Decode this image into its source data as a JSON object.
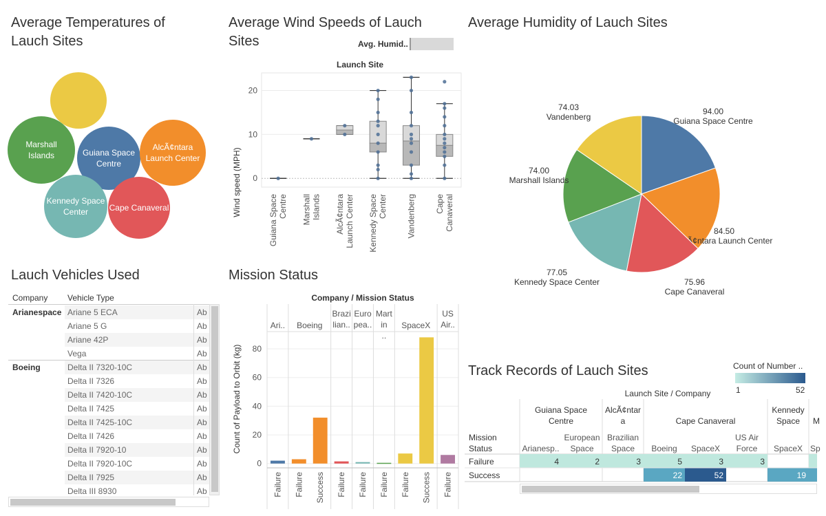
{
  "dashboard": {
    "temps_title": "Average Temperatures of Lauch Sites",
    "wind_title": "Average Wind Speeds of Lauch Sites",
    "humidity_title": "Average Humidity of Lauch Sites",
    "vehicles_title": "Lauch Vehicles Used",
    "mission_title": "Mission Status",
    "track_title": "Track Records of Lauch Sites"
  },
  "bubbles": [
    {
      "label": "",
      "color": "#EBC944"
    },
    {
      "label": "Marshall Islands",
      "color": "#59A14F"
    },
    {
      "label": "Guiana Space Centre",
      "color": "#4E79A7"
    },
    {
      "label": "AlcÃ¢ntara Launch Center",
      "color": "#F28E2B"
    },
    {
      "label": "Kennedy Space Center",
      "color": "#76B7B2"
    },
    {
      "label": "Cape Canaveral",
      "color": "#E15759"
    }
  ],
  "wind_filter": {
    "label": "Avg. Humid.."
  },
  "wind_chart": {
    "type": "boxplot",
    "header": "Launch Site",
    "ylabel": "Wind speed (MPH)",
    "y_ticks": [
      0,
      10,
      20
    ],
    "ylim": [
      -2,
      24
    ],
    "categories": [
      "Guiana Space Centre",
      "Marshall Islands",
      "AlcÃ¢ntara Launch Center",
      "Kennedy Space Center",
      "Vandenberg",
      "Cape Canaveral"
    ],
    "boxes": [
      {
        "min": 0,
        "q1": 0,
        "median": 0,
        "q3": 0,
        "max": 0,
        "points": [
          0
        ]
      },
      {
        "min": 9,
        "q1": 9,
        "median": 9,
        "q3": 9,
        "max": 9,
        "points": [
          9
        ]
      },
      {
        "min": 10,
        "q1": 10,
        "median": 11,
        "q3": 12,
        "max": 12,
        "points": [
          10,
          12
        ]
      },
      {
        "min": 0,
        "q1": 6,
        "median": 8,
        "q3": 13,
        "max": 20,
        "points": [
          0,
          2,
          3,
          6,
          8,
          10,
          12,
          13,
          15,
          18,
          20
        ]
      },
      {
        "min": 0,
        "q1": 3,
        "median": 8.5,
        "q3": 12,
        "max": 23,
        "points": [
          0,
          1,
          3,
          6,
          8,
          9,
          10,
          12,
          15,
          20,
          23
        ]
      },
      {
        "min": 0,
        "q1": 5,
        "median": 7.5,
        "q3": 10,
        "max": 17,
        "points": [
          0,
          3,
          5,
          6,
          7,
          8,
          9,
          10,
          12,
          14,
          16,
          17,
          22
        ]
      }
    ]
  },
  "humidity_chart": {
    "type": "pie",
    "slices": [
      {
        "name": "Guiana Space Centre",
        "value": 94.0,
        "label": "94.00",
        "color": "#4E79A7"
      },
      {
        "name": "AlcÃ¢ntara Launch Center",
        "value": 84.5,
        "label": "84.50",
        "color": "#F28E2B"
      },
      {
        "name": "Cape Canaveral",
        "value": 75.96,
        "label": "75.96",
        "color": "#E15759"
      },
      {
        "name": "Kennedy Space Center",
        "value": 77.05,
        "label": "77.05",
        "color": "#76B7B2"
      },
      {
        "name": "Marshall Islands",
        "value": 74.0,
        "label": "74.00",
        "color": "#59A14F"
      },
      {
        "name": "Vandenberg",
        "value": 74.03,
        "label": "74.03",
        "color": "#EBC944"
      }
    ]
  },
  "vehicles_table": {
    "headers": [
      "Company",
      "Vehicle Type"
    ],
    "groups": [
      {
        "company": "Arianespace",
        "vehicles": [
          "Ariane 5 ECA",
          "Ariane 5 G",
          "Ariane 42P",
          "Vega"
        ]
      },
      {
        "company": "Boeing",
        "vehicles": [
          "Delta II 7320-10C",
          "Delta II 7326",
          "Delta II 7420-10C",
          "Delta II 7425",
          "Delta II 7425-10C",
          "Delta II 7426",
          "Delta II 7920-10",
          "Delta II 7920-10C",
          "Delta II 7925",
          "Delta III 8930"
        ]
      }
    ],
    "abbr": "Ab"
  },
  "mission_chart": {
    "type": "bar",
    "header": "Company / Mission Status",
    "ylabel": "Count of Payload to Orbit (kg)",
    "y_ticks": [
      0,
      20,
      40,
      60,
      80
    ],
    "ylim": [
      -3,
      92
    ],
    "companies": [
      {
        "name": "Ari..",
        "bars": [
          {
            "status": "Failure",
            "value": 2,
            "color": "#4E79A7"
          }
        ]
      },
      {
        "name": "Boeing",
        "bars": [
          {
            "status": "Failure",
            "value": 3,
            "color": "#F28E2B"
          },
          {
            "status": "Success",
            "value": 32,
            "color": "#F28E2B"
          }
        ]
      },
      {
        "name": "Brazi lian..",
        "bars": [
          {
            "status": "Failure",
            "value": 1.5,
            "color": "#E15759"
          }
        ]
      },
      {
        "name": "Euro pea..",
        "bars": [
          {
            "status": "Failure",
            "value": 1,
            "color": "#76B7B2"
          }
        ]
      },
      {
        "name": "Mart in ..",
        "bars": [
          {
            "status": "Failure",
            "value": 0.5,
            "color": "#59A14F"
          }
        ]
      },
      {
        "name": "SpaceX",
        "bars": [
          {
            "status": "Failure",
            "value": 7,
            "color": "#EBC944"
          },
          {
            "status": "Success",
            "value": 88,
            "color": "#EBC944"
          }
        ]
      },
      {
        "name": "US Air..",
        "bars": [
          {
            "status": "Failure",
            "value": 6,
            "color": "#B07AA1"
          }
        ]
      }
    ]
  },
  "track_legend": {
    "title": "Count of Number ..",
    "min": "1",
    "max": "52"
  },
  "track_table": {
    "header": "Launch Site / Company",
    "row_header": "Mission Status",
    "sites": [
      {
        "name": "Guiana Space Centre",
        "companies": [
          "Arianesp..",
          "European Space Ag.."
        ]
      },
      {
        "name": "AlcÃ¢ntar a Launch..",
        "companies": [
          "Brazilian Space Ag.."
        ]
      },
      {
        "name": "Cape Canaveral",
        "companies": [
          "Boeing",
          "SpaceX",
          "US Air Force"
        ]
      },
      {
        "name": "Kennedy Space Ce..",
        "companies": [
          "SpaceX"
        ]
      },
      {
        "name": "M Is",
        "companies": [
          "Sp"
        ]
      }
    ],
    "rows": [
      {
        "status": "Failure",
        "cells": [
          "4",
          "2",
          "3",
          "5",
          "3",
          "3",
          "",
          ""
        ]
      },
      {
        "status": "Success",
        "cells": [
          "",
          "",
          "",
          "22",
          "52",
          "",
          "19",
          ""
        ]
      }
    ]
  }
}
